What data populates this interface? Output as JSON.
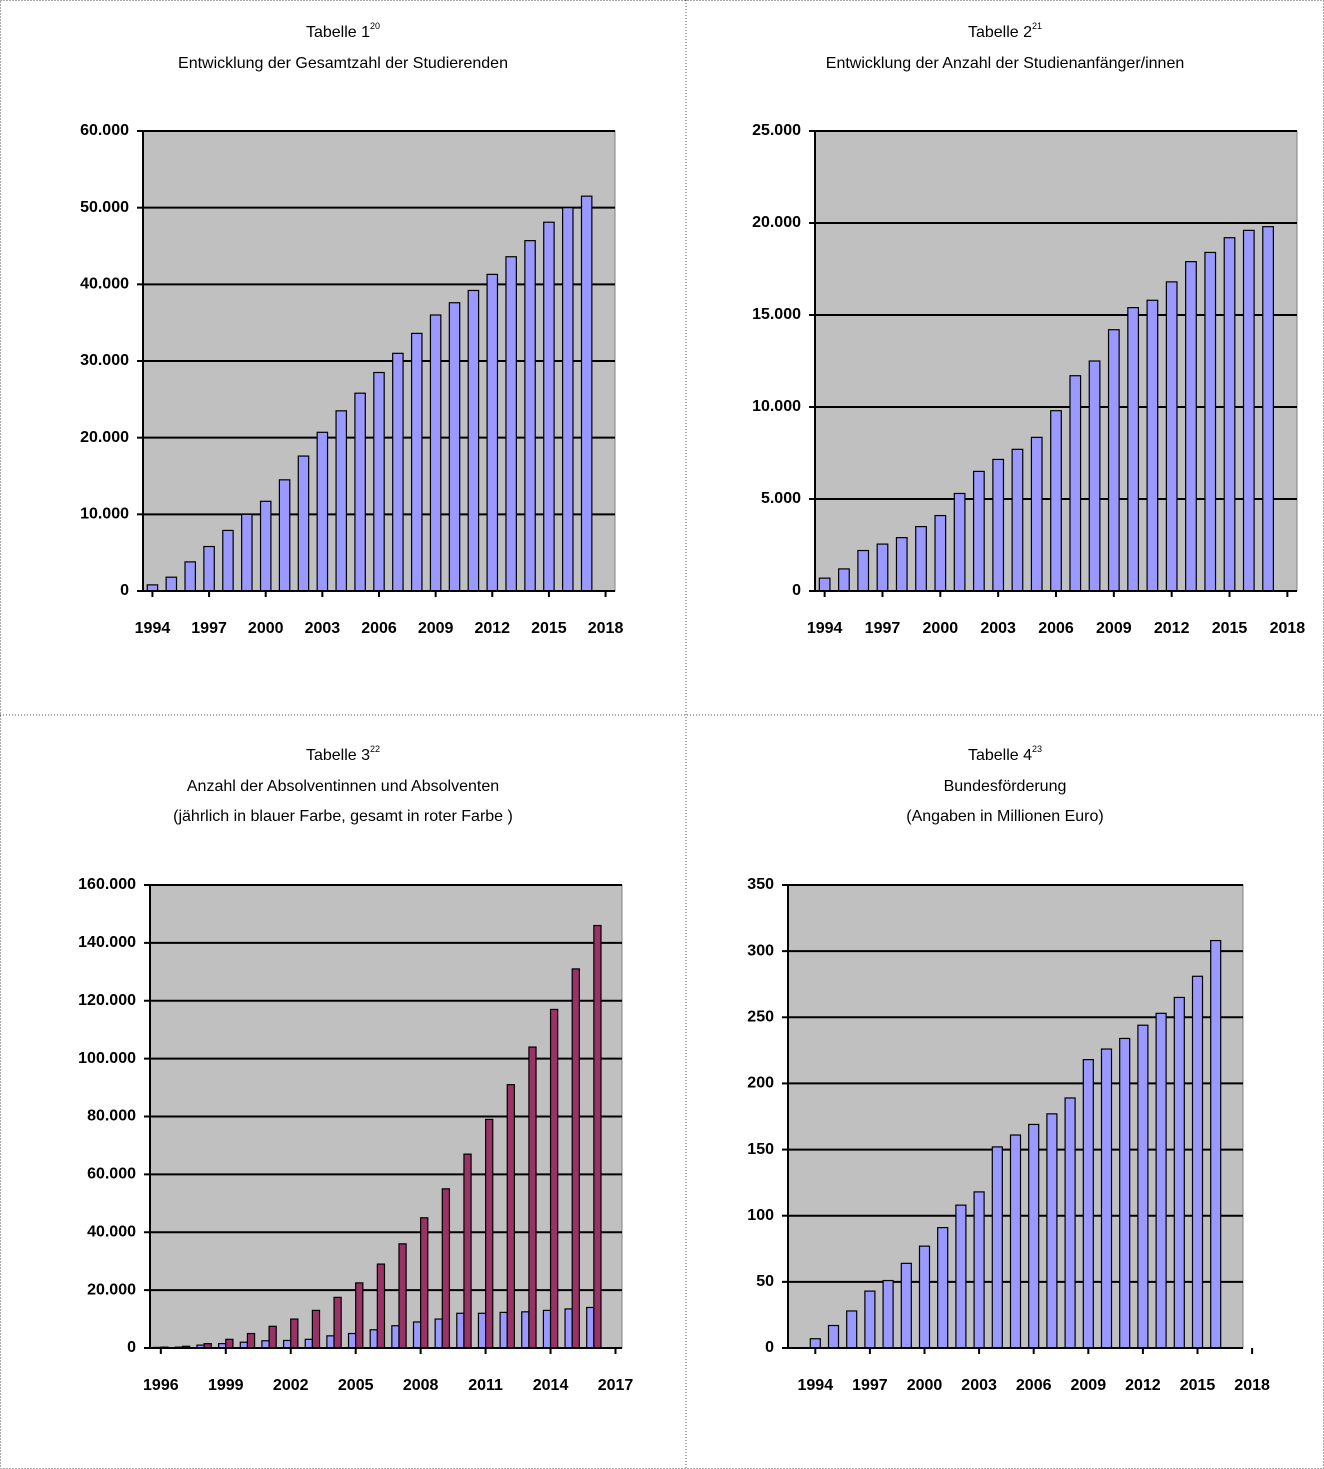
{
  "chart_data": [
    {
      "type": "bar",
      "title": "Tabelle 1",
      "title_note": "20",
      "subtitle": [
        "Entwicklung der Gesamtzahl der Studierenden"
      ],
      "x": [
        1994,
        1995,
        1996,
        1997,
        1998,
        1999,
        2000,
        2001,
        2002,
        2003,
        2004,
        2005,
        2006,
        2007,
        2008,
        2009,
        2010,
        2011,
        2012,
        2013,
        2014,
        2015,
        2016,
        2017
      ],
      "values": [
        800,
        1800,
        3800,
        5800,
        7900,
        10000,
        11700,
        14500,
        17600,
        20700,
        23500,
        25800,
        28500,
        31000,
        33600,
        36000,
        37600,
        39200,
        41300,
        43600,
        45700,
        48100,
        50000,
        51500
      ],
      "color": "#9999ff",
      "xlim": [
        1993.5,
        2018.5
      ],
      "xticks": [
        1994,
        1997,
        2000,
        2003,
        2006,
        2009,
        2012,
        2015,
        2018
      ],
      "ylim": [
        0,
        60000
      ],
      "yticks": [
        0,
        {
          "value": 10000,
          "label": "10.000"
        },
        {
          "value": 20000,
          "label": "20.000"
        },
        {
          "value": 30000,
          "label": "30.000"
        },
        {
          "value": 40000,
          "label": "40.000"
        },
        {
          "value": 50000,
          "label": "50.000"
        },
        {
          "value": 60000,
          "label": "60.000"
        }
      ],
      "grid": true
    },
    {
      "type": "bar",
      "title": "Tabelle 2",
      "title_note": "21",
      "subtitle": [
        "Entwicklung der Anzahl der Studienanfänger/innen"
      ],
      "x": [
        1994,
        1995,
        1996,
        1997,
        1998,
        1999,
        2000,
        2001,
        2002,
        2003,
        2004,
        2005,
        2006,
        2007,
        2008,
        2009,
        2010,
        2011,
        2012,
        2013,
        2014,
        2015,
        2016,
        2017
      ],
      "values": [
        700,
        1200,
        2200,
        2550,
        2900,
        3500,
        4100,
        5300,
        6500,
        7150,
        7700,
        8350,
        9800,
        11700,
        12500,
        14200,
        15400,
        15800,
        16800,
        17900,
        18400,
        19200,
        19600,
        19800
      ],
      "color": "#9999ff",
      "xlim": [
        1993.5,
        2018.5
      ],
      "xticks": [
        1994,
        1997,
        2000,
        2003,
        2006,
        2009,
        2012,
        2015,
        2018
      ],
      "ylim": [
        0,
        25000
      ],
      "yticks": [
        0,
        {
          "value": 5000,
          "label": "5.000"
        },
        {
          "value": 10000,
          "label": "10.000"
        },
        {
          "value": 15000,
          "label": "15.000"
        },
        {
          "value": 20000,
          "label": "20.000"
        },
        {
          "value": 25000,
          "label": "25.000"
        }
      ],
      "grid": true
    },
    {
      "type": "bar",
      "title": "Tabelle 3",
      "title_note": "22",
      "subtitle": [
        "Anzahl der Absolventinnen und Absolventen",
        "(jährlich in blauer Farbe, gesamt in roter Farbe )"
      ],
      "x": [
        1996,
        1997,
        1998,
        1999,
        2000,
        2001,
        2002,
        2003,
        2004,
        2005,
        2006,
        2007,
        2008,
        2009,
        2010,
        2011,
        2012,
        2013,
        2014,
        2015,
        2016
      ],
      "series": [
        {
          "color": "#9999ff",
          "values": [
            200,
            300,
            1000,
            1500,
            2000,
            2500,
            2600,
            3000,
            4200,
            5000,
            6300,
            7700,
            9000,
            10000,
            12000,
            12000,
            12300,
            12500,
            13000,
            13500,
            14000
          ]
        },
        {
          "color": "#993366",
          "values": [
            300,
            600,
            1500,
            3000,
            5000,
            7500,
            10000,
            13000,
            17500,
            22500,
            29000,
            36000,
            45000,
            55000,
            67000,
            79000,
            91000,
            104000,
            117000,
            131000,
            146000
          ]
        }
      ],
      "xlim": [
        1995.5,
        2017.3
      ],
      "xticks": [
        1996,
        1999,
        2002,
        2005,
        2008,
        2011,
        2014,
        2017
      ],
      "ylim": [
        0,
        160000
      ],
      "yticks": [
        0,
        {
          "value": 20000,
          "label": "20.000"
        },
        {
          "value": 40000,
          "label": "40.000"
        },
        {
          "value": 60000,
          "label": "60.000"
        },
        {
          "value": 80000,
          "label": "80.000"
        },
        {
          "value": 100000,
          "label": "100.000"
        },
        {
          "value": 120000,
          "label": "120.000"
        },
        {
          "value": 140000,
          "label": "140.000"
        },
        {
          "value": 160000,
          "label": "160.000"
        }
      ],
      "grid": true
    },
    {
      "type": "bar",
      "title": "Tabelle 4",
      "title_note": "23",
      "subtitle": [
        "Bundesförderung",
        "(Angaben in Millionen Euro)"
      ],
      "x": [
        1994,
        1995,
        1996,
        1997,
        1998,
        1999,
        2000,
        2001,
        2002,
        2003,
        2004,
        2005,
        2006,
        2007,
        2008,
        2009,
        2010,
        2011,
        2012,
        2013,
        2014,
        2015,
        2016
      ],
      "values": [
        7,
        17,
        28,
        43,
        51,
        64,
        77,
        91,
        108,
        118,
        152,
        161,
        169,
        177,
        189,
        218,
        226,
        234,
        244,
        253,
        265,
        281,
        308
      ],
      "color": "#9999ff",
      "xlim": [
        1992.5,
        2017.5
      ],
      "xticks": [
        1994,
        1997,
        2000,
        2003,
        2006,
        2009,
        2012,
        2015,
        2018
      ],
      "ylim": [
        0,
        350
      ],
      "yticks": [
        0,
        50,
        100,
        150,
        200,
        250,
        300,
        350
      ],
      "grid": true
    }
  ]
}
